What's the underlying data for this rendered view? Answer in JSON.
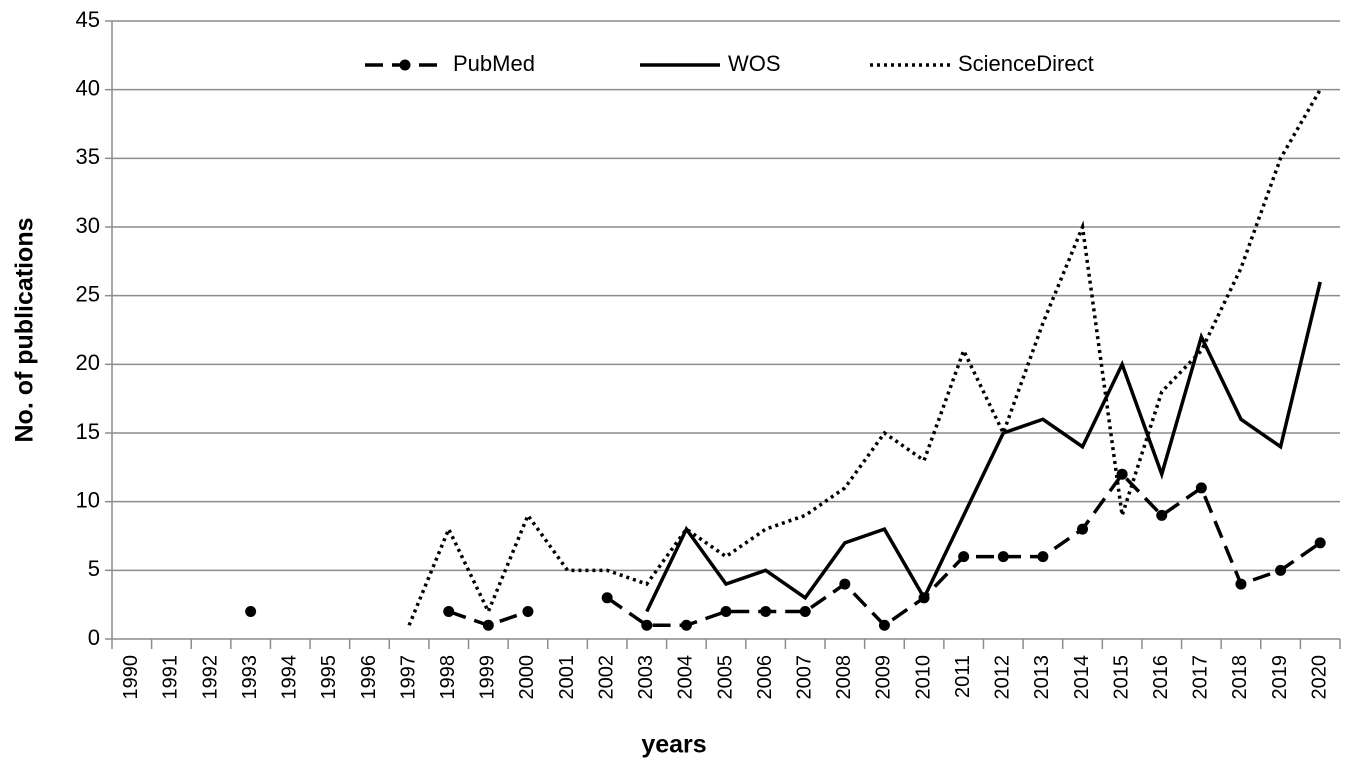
{
  "chart_data": {
    "type": "line",
    "x_label": "years",
    "y_label": "No. of publications",
    "categories": [
      "1990",
      "1991",
      "1992",
      "1993",
      "1994",
      "1995",
      "1996",
      "1997",
      "1998",
      "1999",
      "2000",
      "2001",
      "2002",
      "2003",
      "2004",
      "2005",
      "2006",
      "2007",
      "2008",
      "2009",
      "2010",
      "2011",
      "2012",
      "2013",
      "2014",
      "2015",
      "2016",
      "2017",
      "2018",
      "2019",
      "2020"
    ],
    "series": [
      {
        "name": "PubMed",
        "color": "#000000",
        "dash": "dashed",
        "marker": "circle",
        "values": [
          null,
          null,
          null,
          2,
          null,
          null,
          null,
          null,
          2,
          1,
          2,
          null,
          3,
          1,
          1,
          2,
          2,
          2,
          4,
          1,
          3,
          6,
          6,
          6,
          8,
          12,
          9,
          11,
          4,
          5,
          7
        ]
      },
      {
        "name": "WOS",
        "color": "#000000",
        "dash": "solid",
        "marker": "none",
        "values": [
          null,
          null,
          null,
          null,
          null,
          null,
          null,
          null,
          null,
          null,
          null,
          null,
          null,
          2,
          8,
          4,
          5,
          3,
          7,
          8,
          3,
          9,
          15,
          16,
          14,
          20,
          12,
          22,
          16,
          14,
          26
        ]
      },
      {
        "name": "ScienceDirect",
        "color": "#000000",
        "dash": "dotted",
        "marker": "none",
        "values": [
          null,
          null,
          null,
          null,
          null,
          null,
          null,
          1,
          8,
          2,
          9,
          5,
          5,
          4,
          8,
          6,
          8,
          9,
          11,
          15,
          13,
          21,
          15,
          23,
          30,
          9,
          18,
          21,
          27,
          35,
          40
        ]
      }
    ],
    "ylim": [
      0,
      45
    ],
    "yticks": [
      0,
      5,
      10,
      15,
      20,
      25,
      30,
      35,
      40,
      45
    ],
    "grid": true,
    "legend": "top"
  }
}
